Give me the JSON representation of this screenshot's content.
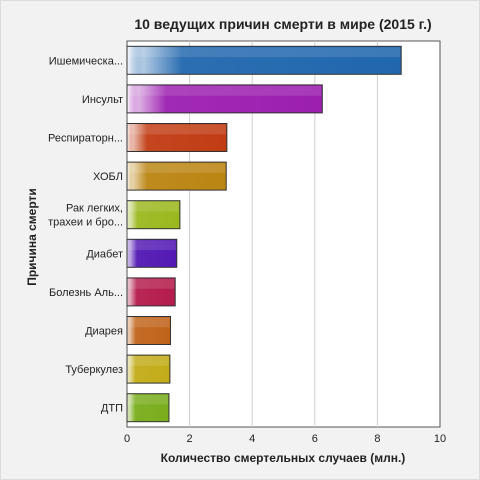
{
  "chart_data": {
    "type": "bar",
    "orientation": "horizontal",
    "title": "10 ведущих причин смерти в мире (2015 г.)",
    "xlabel": "Количество смертельных случаев (млн.)",
    "ylabel": "Причина смерти",
    "xlim": [
      0,
      10
    ],
    "xticks": [
      "0",
      "2",
      "4",
      "6",
      "8",
      "10"
    ],
    "grid": true,
    "categories": [
      [
        "Ишемическа..."
      ],
      [
        "Инсульт"
      ],
      [
        "Респираторн..."
      ],
      [
        "ХОБЛ"
      ],
      [
        "Рак легких,",
        "трахеи и бро..."
      ],
      [
        "Диабет"
      ],
      [
        "Болезнь Аль..."
      ],
      [
        "Диарея"
      ],
      [
        "Туберкулез"
      ],
      [
        "ДТП"
      ]
    ],
    "values": [
      8.76,
      6.24,
      3.19,
      3.17,
      1.69,
      1.59,
      1.54,
      1.39,
      1.37,
      1.34
    ],
    "colors": [
      "#2167ae",
      "#9c1fb0",
      "#c13c14",
      "#bb8512",
      "#9bb81e",
      "#5219b3",
      "#b41c4c",
      "#c0641b",
      "#c2ac18",
      "#79ad1c"
    ]
  }
}
